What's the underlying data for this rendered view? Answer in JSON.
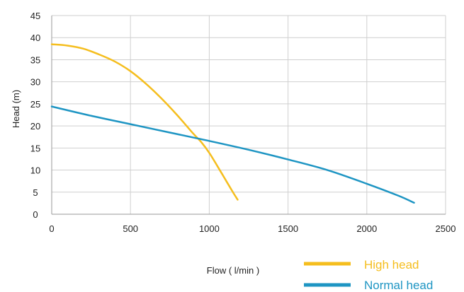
{
  "chart_data": {
    "type": "line",
    "xlabel": "Flow  ( l/min )",
    "ylabel": "Head (m)",
    "xlim": [
      0,
      2500
    ],
    "ylim": [
      0,
      45
    ],
    "x_ticks": [
      0,
      500,
      1000,
      1500,
      2000,
      2500
    ],
    "y_ticks": [
      0,
      5,
      10,
      15,
      20,
      25,
      30,
      35,
      40,
      45
    ],
    "grid": true,
    "legend_position": "bottom-right",
    "series": [
      {
        "name": "High head",
        "color": "#F5BE1E",
        "points": [
          [
            0,
            38.5
          ],
          [
            100,
            38.2
          ],
          [
            200,
            37.5
          ],
          [
            300,
            36.2
          ],
          [
            400,
            34.6
          ],
          [
            500,
            32.4
          ],
          [
            600,
            29.5
          ],
          [
            700,
            26.1
          ],
          [
            800,
            22.3
          ],
          [
            900,
            18.2
          ],
          [
            950,
            16.3
          ],
          [
            1000,
            13.9
          ],
          [
            1050,
            11.0
          ],
          [
            1100,
            8.0
          ],
          [
            1150,
            5.0
          ],
          [
            1180,
            3.3
          ]
        ]
      },
      {
        "name": "Normal head",
        "color": "#1E95C3",
        "points": [
          [
            0,
            24.4
          ],
          [
            250,
            22.3
          ],
          [
            500,
            20.4
          ],
          [
            750,
            18.5
          ],
          [
            1000,
            16.6
          ],
          [
            1250,
            14.6
          ],
          [
            1500,
            12.4
          ],
          [
            1750,
            10.0
          ],
          [
            2000,
            6.9
          ],
          [
            2200,
            4.2
          ],
          [
            2300,
            2.6
          ]
        ]
      }
    ]
  }
}
